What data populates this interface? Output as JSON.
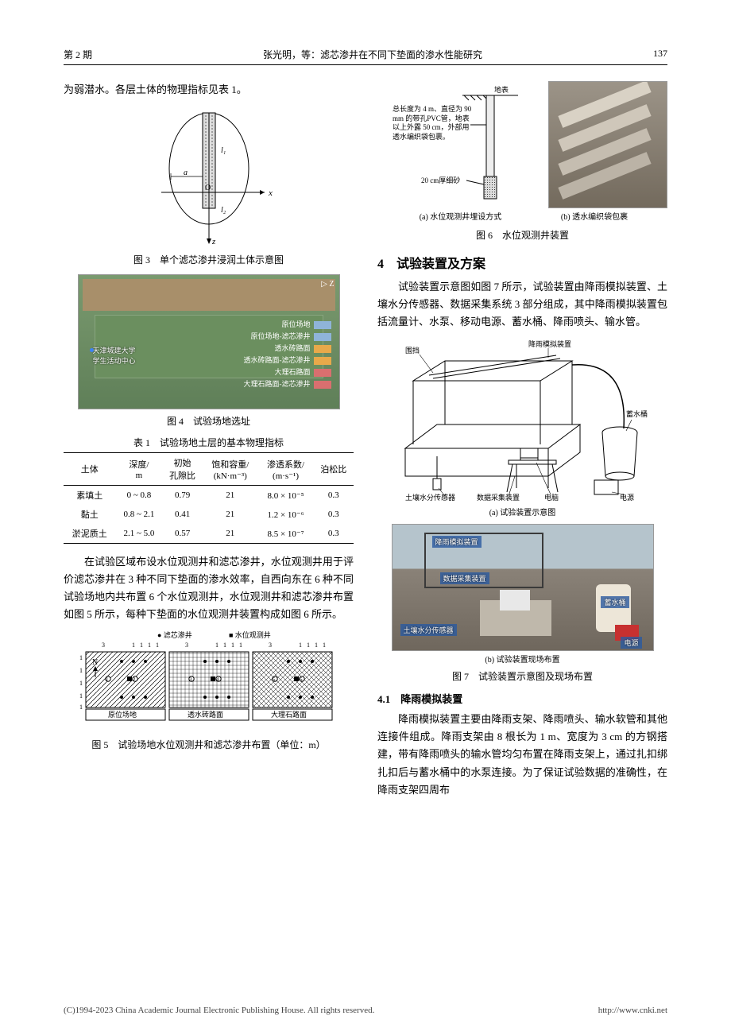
{
  "header": {
    "issue": "第 2 期",
    "title": "张光明，等：滤芯渗井在不同下垫面的渗水性能研究",
    "page": "137"
  },
  "left": {
    "intro": "为弱潜水。各层土体的物理指标见表 1。",
    "fig3_caption": "图 3　单个滤芯渗井浸润土体示意图",
    "fig4_caption": "图 4　试验场地选址",
    "fig4_labels": {
      "center": "天津城建大学\n学生活动中心",
      "site": "原位场地",
      "row1": "原位场地-滤芯渗井",
      "row2": "透水砖路面-滤芯渗井",
      "row3": "大理石路面-滤芯渗井",
      "c1": "原位场地",
      "c2": "透水砖路面",
      "c3": "大理石路面",
      "compass": "Z"
    },
    "fig4_colors": {
      "c1": "#8fb4d9",
      "c2": "#e8a94a",
      "c3": "#d96f6f"
    },
    "table1_title": "表 1　试验场地土层的基本物理指标",
    "table1": {
      "headers": [
        "土体",
        "深度/\nm",
        "初始\n孔隙比",
        "饱和容重/\n(kN·m⁻³)",
        "渗透系数/\n(m·s⁻¹)",
        "泊松比"
      ],
      "rows": [
        [
          "素填土",
          "0 ~ 0.8",
          "0.79",
          "21",
          "8.0 × 10⁻⁵",
          "0.3"
        ],
        [
          "黏土",
          "0.8 ~ 2.1",
          "0.41",
          "21",
          "1.2 × 10⁻⁶",
          "0.3"
        ],
        [
          "淤泥质土",
          "2.1 ~ 5.0",
          "0.57",
          "21",
          "8.5 × 10⁻⁷",
          "0.3"
        ]
      ]
    },
    "para2": "在试验区域布设水位观测井和滤芯渗井，水位观测井用于评价滤芯渗井在 3 种不同下垫面的渗水效率，自西向东在 6 种不同试验场地内共布置 6 个水位观测井，水位观测井和滤芯渗井布置如图 5 所示，每种下垫面的水位观测井装置构成如图 6 所示。",
    "fig5_caption": "图 5　试验场地水位观测井和滤芯渗井布置（单位：m）",
    "fig5_legend": {
      "well": "滤芯渗井",
      "obs": "水位观测井"
    },
    "fig5_axis": [
      "原位场地",
      "透水砖路面",
      "大理石路面"
    ]
  },
  "right": {
    "fig6": {
      "surface": "地表",
      "desc": "总长度为 4 m、直径为 90 mm 的带孔PVC管，地表以上外露 50 cm，外部用透水编织袋包裹。",
      "sand": "20 cm厚细砂",
      "sub_a": "(a) 水位观测井埋设方式",
      "sub_b": "(b) 透水编织袋包裹",
      "caption": "图 6　水位观测井装置"
    },
    "section4": "4　试验装置及方案",
    "para1": "试验装置示意图如图 7 所示，试验装置由降雨模拟装置、土壤水分传感器、数据采集系统 3 部分组成，其中降雨模拟装置包括流量计、水泵、移动电源、蓄水桶、降雨喷头、输水管。",
    "fig7": {
      "labels": {
        "fence": "围挡",
        "rain": "降雨模拟装置",
        "bucket": "蓄水桶",
        "sensor": "土壤水分传感器",
        "daq": "数据采集装置",
        "laptop": "电脑",
        "power": "电源"
      },
      "sub_a": "(a) 试验装置示意图",
      "sub_b": "(b) 试验装置现场布置",
      "caption": "图 7　试验装置示意图及现场布置",
      "photo_labels": {
        "rain": "降雨模拟装置",
        "daq": "数据采集装置",
        "bucket": "蓄水桶",
        "sensor": "土壤水分传感器",
        "power": "电源"
      }
    },
    "subsection41": "4.1　降雨模拟装置",
    "para2": "降雨模拟装置主要由降雨支架、降雨喷头、输水软管和其他连接件组成。降雨支架由 8 根长为 1 m、宽度为 3 cm 的方钢搭建，带有降雨喷头的输水管均匀布置在降雨支架上，通过扎扣绑扎扣后与蓄水桶中的水泵连接。为了保证试验数据的准确性，在降雨支架四周布"
  },
  "footer": {
    "left": "(C)1994-2023 China Academic Journal Electronic Publishing House. All rights reserved.",
    "right": "http://www.cnki.net"
  }
}
